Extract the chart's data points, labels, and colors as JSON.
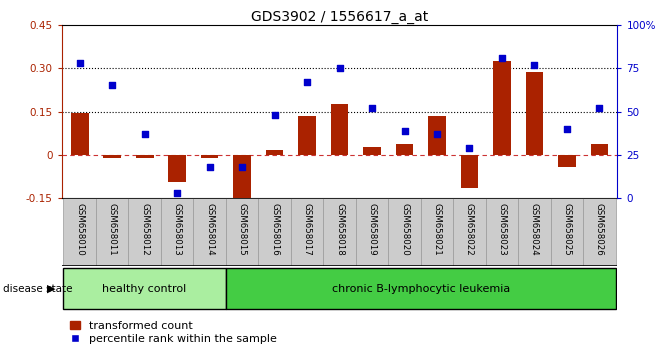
{
  "title": "GDS3902 / 1556617_a_at",
  "samples": [
    "GSM658010",
    "GSM658011",
    "GSM658012",
    "GSM658013",
    "GSM658014",
    "GSM658015",
    "GSM658016",
    "GSM658017",
    "GSM658018",
    "GSM658019",
    "GSM658020",
    "GSM658021",
    "GSM658022",
    "GSM658023",
    "GSM658024",
    "GSM658025",
    "GSM658026"
  ],
  "bar_values": [
    0.145,
    -0.012,
    -0.012,
    -0.095,
    -0.012,
    -0.195,
    0.018,
    0.135,
    0.175,
    0.028,
    0.038,
    0.135,
    -0.115,
    0.325,
    0.285,
    -0.042,
    0.038
  ],
  "dot_values_pct": [
    78,
    65,
    37,
    3,
    18,
    18,
    48,
    67,
    75,
    52,
    39,
    37,
    29,
    81,
    77,
    40,
    52
  ],
  "bar_color": "#aa2200",
  "dot_color": "#0000cc",
  "ylim_left": [
    -0.15,
    0.45
  ],
  "ylim_right": [
    0,
    100
  ],
  "yticks_left": [
    -0.15,
    0.0,
    0.15,
    0.3,
    0.45
  ],
  "ytick_labels_left": [
    "-0.15",
    "0",
    "0.15",
    "0.30",
    "0.45"
  ],
  "yticks_right": [
    0,
    25,
    50,
    75,
    100
  ],
  "ytick_labels_right": [
    "0",
    "25",
    "50",
    "75",
    "100%"
  ],
  "hlines": [
    0.15,
    0.3
  ],
  "zero_line_color": "#cc3333",
  "group1_label": "healthy control",
  "group2_label": "chronic B-lymphocytic leukemia",
  "group1_count": 5,
  "disease_label": "disease state",
  "group1_color": "#aaeea0",
  "group2_color": "#44cc44",
  "legend_bar_label": "transformed count",
  "legend_dot_label": "percentile rank within the sample",
  "bar_width": 0.55,
  "bg_color": "#ffffff",
  "tick_label_area_bg": "#cccccc",
  "title_fontsize": 10,
  "axis_fontsize": 7.5,
  "label_fontsize": 8
}
